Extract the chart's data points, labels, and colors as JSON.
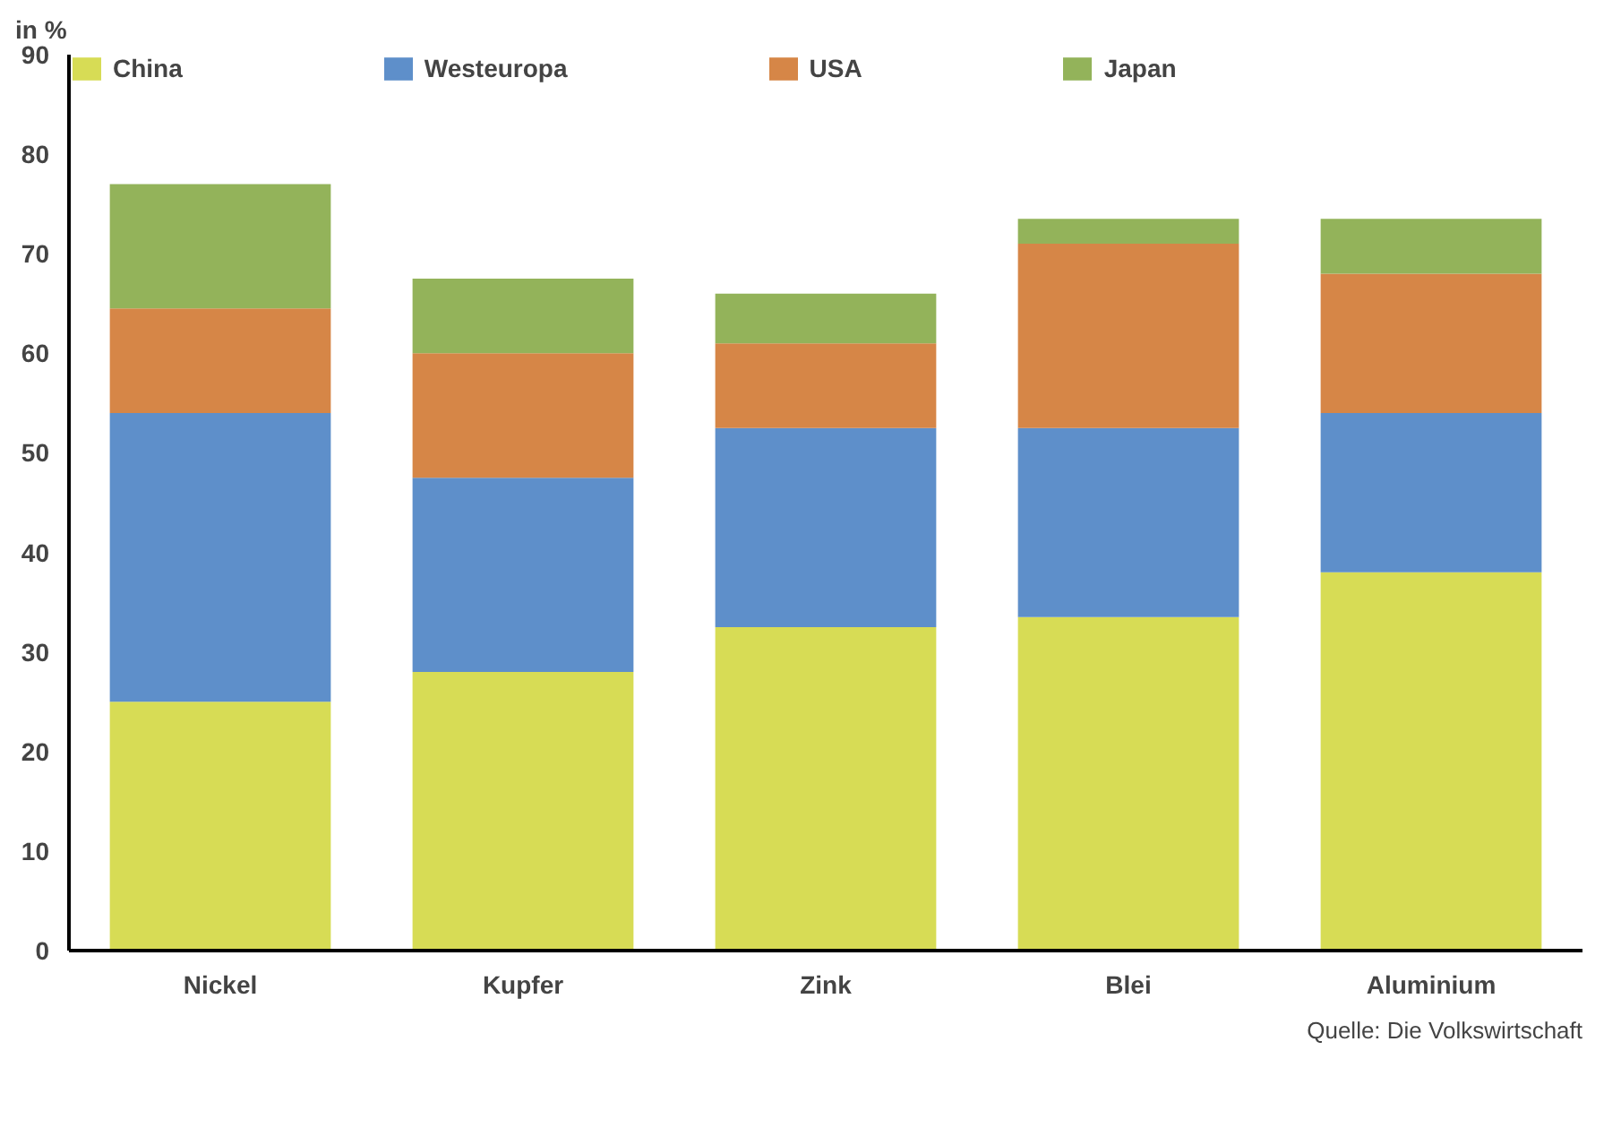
{
  "chart_data": {
    "type": "bar",
    "stacked": true,
    "ylabel": "in %",
    "categories": [
      "Nickel",
      "Kupfer",
      "Zink",
      "Blei",
      "Aluminium"
    ],
    "series": [
      {
        "name": "China",
        "color": "#d7dc55",
        "values": [
          25,
          28,
          32.5,
          33.5,
          38
        ]
      },
      {
        "name": "Westeuropa",
        "color": "#5e8fca",
        "values": [
          29,
          19.5,
          20,
          19,
          16
        ]
      },
      {
        "name": "USA",
        "color": "#d68647",
        "values": [
          10.5,
          12.5,
          8.5,
          18.5,
          14
        ]
      },
      {
        "name": "Japan",
        "color": "#93b35a",
        "values": [
          12.5,
          7.5,
          5,
          2.5,
          5.5
        ]
      }
    ],
    "ylim": [
      0,
      90
    ],
    "yticks": [
      0,
      10,
      20,
      30,
      40,
      50,
      60,
      70,
      80,
      90
    ],
    "grid": false,
    "legend": "top",
    "annotations": [
      "Quelle: Die Volkswirtschaft"
    ]
  }
}
